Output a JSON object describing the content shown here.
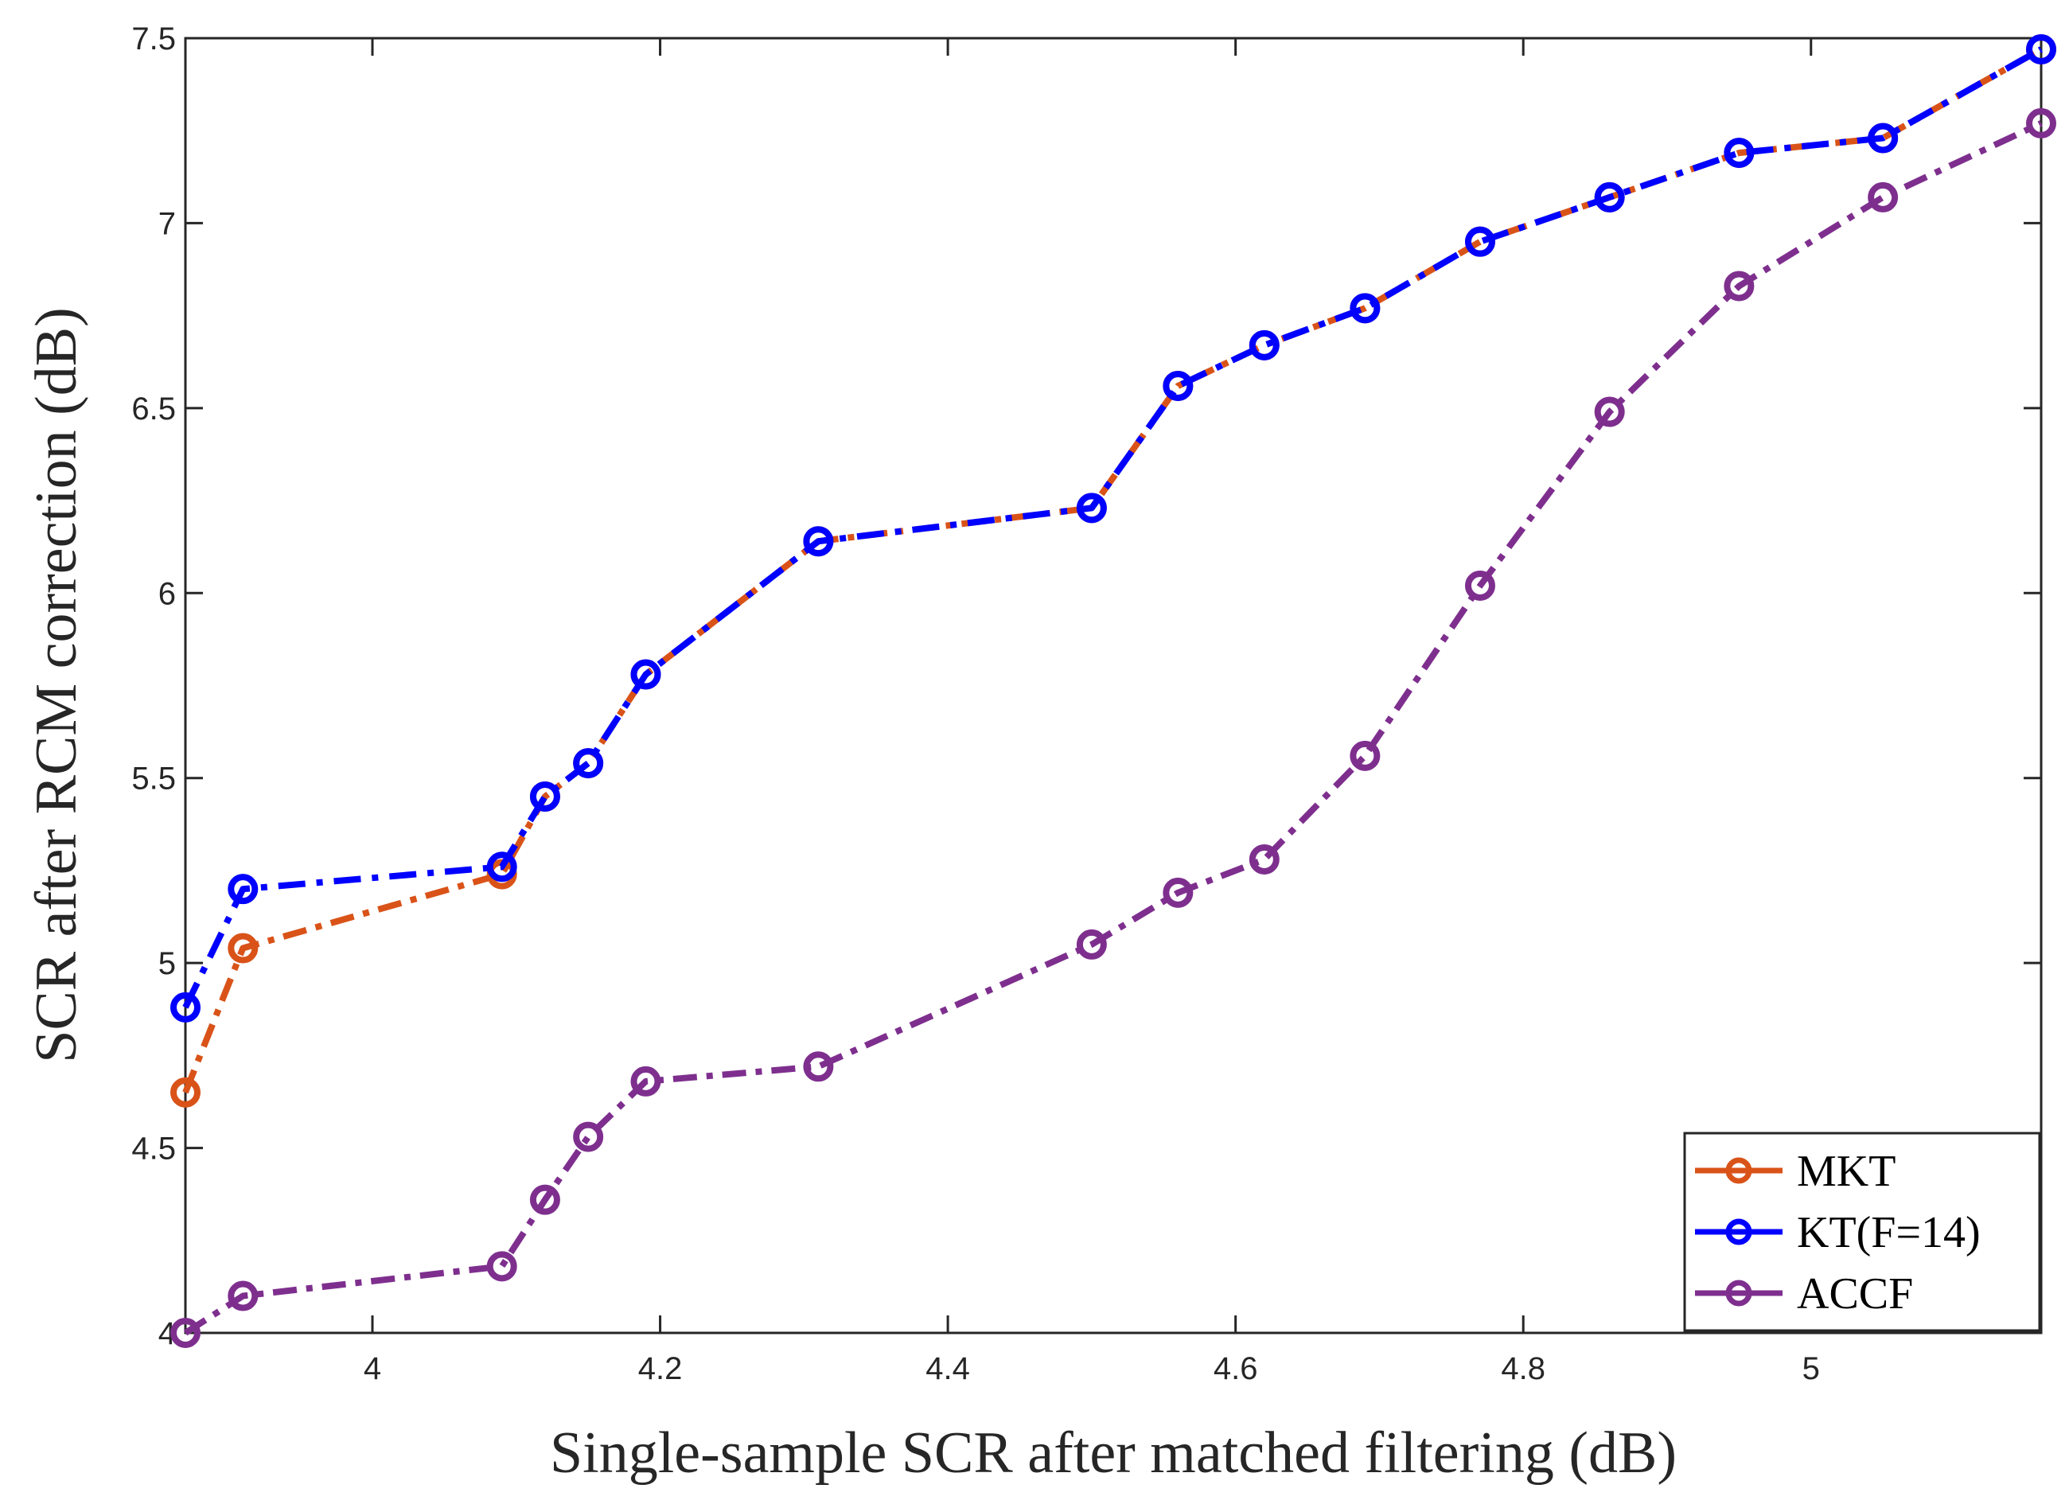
{
  "chart_data": {
    "type": "line",
    "title": "",
    "xlabel": "Single-sample SCR after matched filtering (dB)",
    "ylabel": "SCR after RCM correction (dB)",
    "xlim": [
      3.87,
      5.16
    ],
    "ylim": [
      4.0,
      7.5
    ],
    "xticks": [
      4,
      4.2,
      4.4,
      4.6,
      4.8,
      5
    ],
    "xtick_labels": [
      "4",
      "4.2",
      "4.4",
      "4.6",
      "4.8",
      "5"
    ],
    "yticks": [
      4,
      4.5,
      5,
      5.5,
      6,
      6.5,
      7,
      7.5
    ],
    "ytick_labels": [
      "4",
      "4.5",
      "5",
      "5.5",
      "6",
      "6.5",
      "7",
      "7.5"
    ],
    "grid": false,
    "legend_position": "bottom-right",
    "x": [
      3.87,
      3.91,
      4.09,
      4.12,
      4.15,
      4.19,
      4.31,
      4.5,
      4.56,
      4.62,
      4.69,
      4.77,
      4.86,
      4.95,
      5.05,
      5.16
    ],
    "series": [
      {
        "name": "MKT",
        "color": "#D95319",
        "values": [
          4.65,
          5.04,
          5.24,
          5.45,
          5.54,
          5.78,
          6.14,
          6.23,
          6.56,
          6.67,
          6.77,
          6.95,
          7.07,
          7.19,
          7.23,
          7.47
        ]
      },
      {
        "name": "KT(F=14)",
        "color": "#0000FF",
        "values": [
          4.88,
          5.2,
          5.26,
          5.45,
          5.54,
          5.78,
          6.14,
          6.23,
          6.56,
          6.67,
          6.77,
          6.95,
          7.07,
          7.19,
          7.23,
          7.47
        ]
      },
      {
        "name": "ACCF",
        "color": "#7E2F8E",
        "values": [
          4.0,
          4.1,
          4.18,
          4.36,
          4.53,
          4.68,
          4.72,
          5.05,
          5.19,
          5.28,
          5.56,
          6.02,
          6.49,
          6.83,
          7.07,
          7.27
        ]
      }
    ]
  }
}
